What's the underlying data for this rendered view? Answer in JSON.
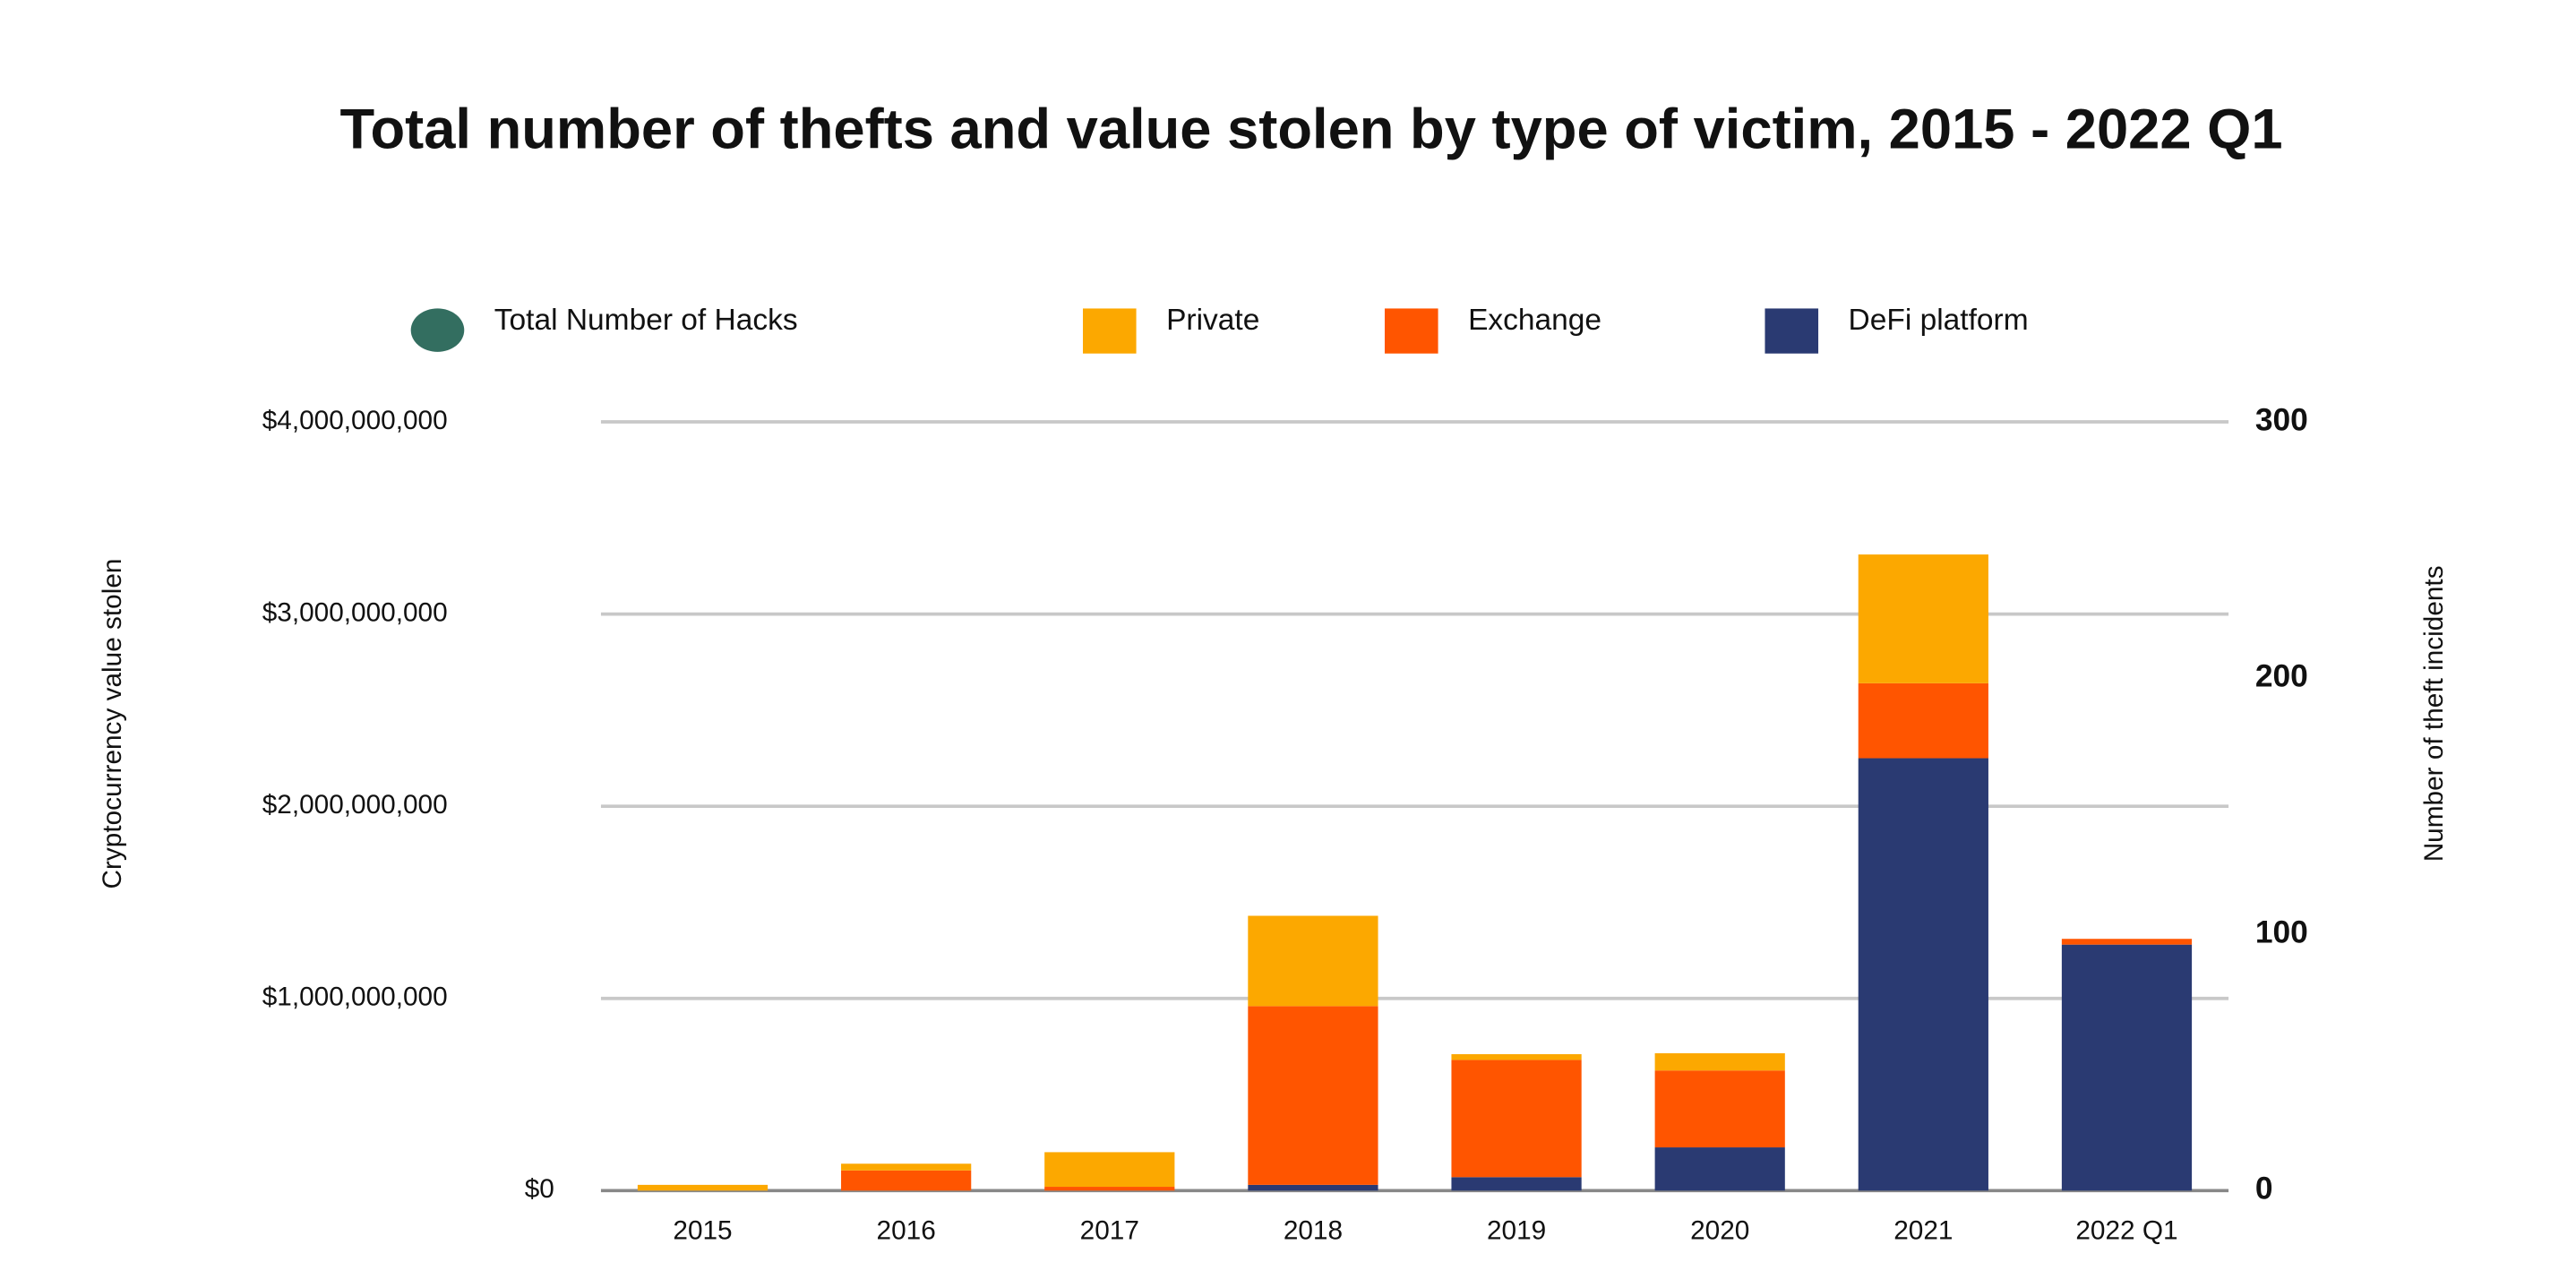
{
  "chart_data": {
    "type": "bar",
    "stacked": true,
    "title": "Total number of thefts and value stolen by type of victim, 2015 - 2022 Q1",
    "ylabel": "Cryptocurrency value stolen",
    "y2label": "Number of theft incidents",
    "categories": [
      "2015",
      "2016",
      "2017",
      "2018",
      "2019",
      "2020",
      "2021",
      "2022 Q1"
    ],
    "series": [
      {
        "name": "Total Number of Hacks",
        "color": "#336e60",
        "axis": "y2",
        "values": [
          null,
          null,
          null,
          null,
          null,
          null,
          null,
          null
        ]
      },
      {
        "name": "Private",
        "color": "#fca800",
        "values": [
          30000000,
          35000000,
          180000000,
          470000000,
          30000000,
          90000000,
          670000000,
          0
        ]
      },
      {
        "name": "Exchange",
        "color": "#ff5500",
        "values": [
          0,
          105000000,
          20000000,
          930000000,
          610000000,
          400000000,
          390000000,
          30000000
        ]
      },
      {
        "name": "DeFi platform",
        "color": "#2a3a72",
        "values": [
          0,
          0,
          0,
          30000000,
          70000000,
          225000000,
          2250000000,
          1280000000
        ]
      }
    ],
    "ylim": [
      0,
      4000000000
    ],
    "yticks": [
      {
        "value": 0,
        "label": "$0"
      },
      {
        "value": 1000000000,
        "label": "$1,000,000,000"
      },
      {
        "value": 2000000000,
        "label": "$2,000,000,000"
      },
      {
        "value": 3000000000,
        "label": "$3,000,000,000"
      },
      {
        "value": 4000000000,
        "label": "$4,000,000,000"
      }
    ],
    "y2lim": [
      0,
      300
    ],
    "y2ticks": [
      0,
      100,
      200,
      300
    ],
    "grid": true,
    "legend": "top"
  }
}
